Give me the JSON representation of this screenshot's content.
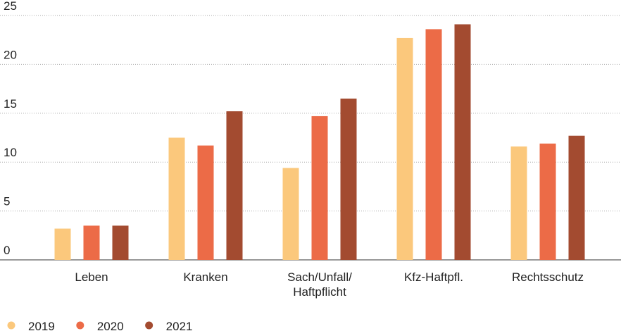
{
  "chart_data": {
    "type": "bar",
    "categories": [
      "Leben",
      "Kranken",
      "Sach/Unfall/\nHaftpflicht",
      "Kfz-Haftpfl.",
      "Rechtsschutz"
    ],
    "series": [
      {
        "name": "2019",
        "color": "#fbc87c",
        "values": [
          3.2,
          12.5,
          9.4,
          22.7,
          11.6
        ]
      },
      {
        "name": "2020",
        "color": "#ec6b47",
        "values": [
          3.5,
          11.7,
          14.7,
          23.6,
          11.9
        ]
      },
      {
        "name": "2021",
        "color": "#a34b30",
        "values": [
          3.5,
          15.2,
          16.5,
          24.1,
          12.7
        ]
      }
    ],
    "ylim": [
      0,
      25
    ],
    "yticks": [
      0,
      5,
      10,
      15,
      20,
      25
    ],
    "grid": true,
    "legend": "bottom"
  }
}
